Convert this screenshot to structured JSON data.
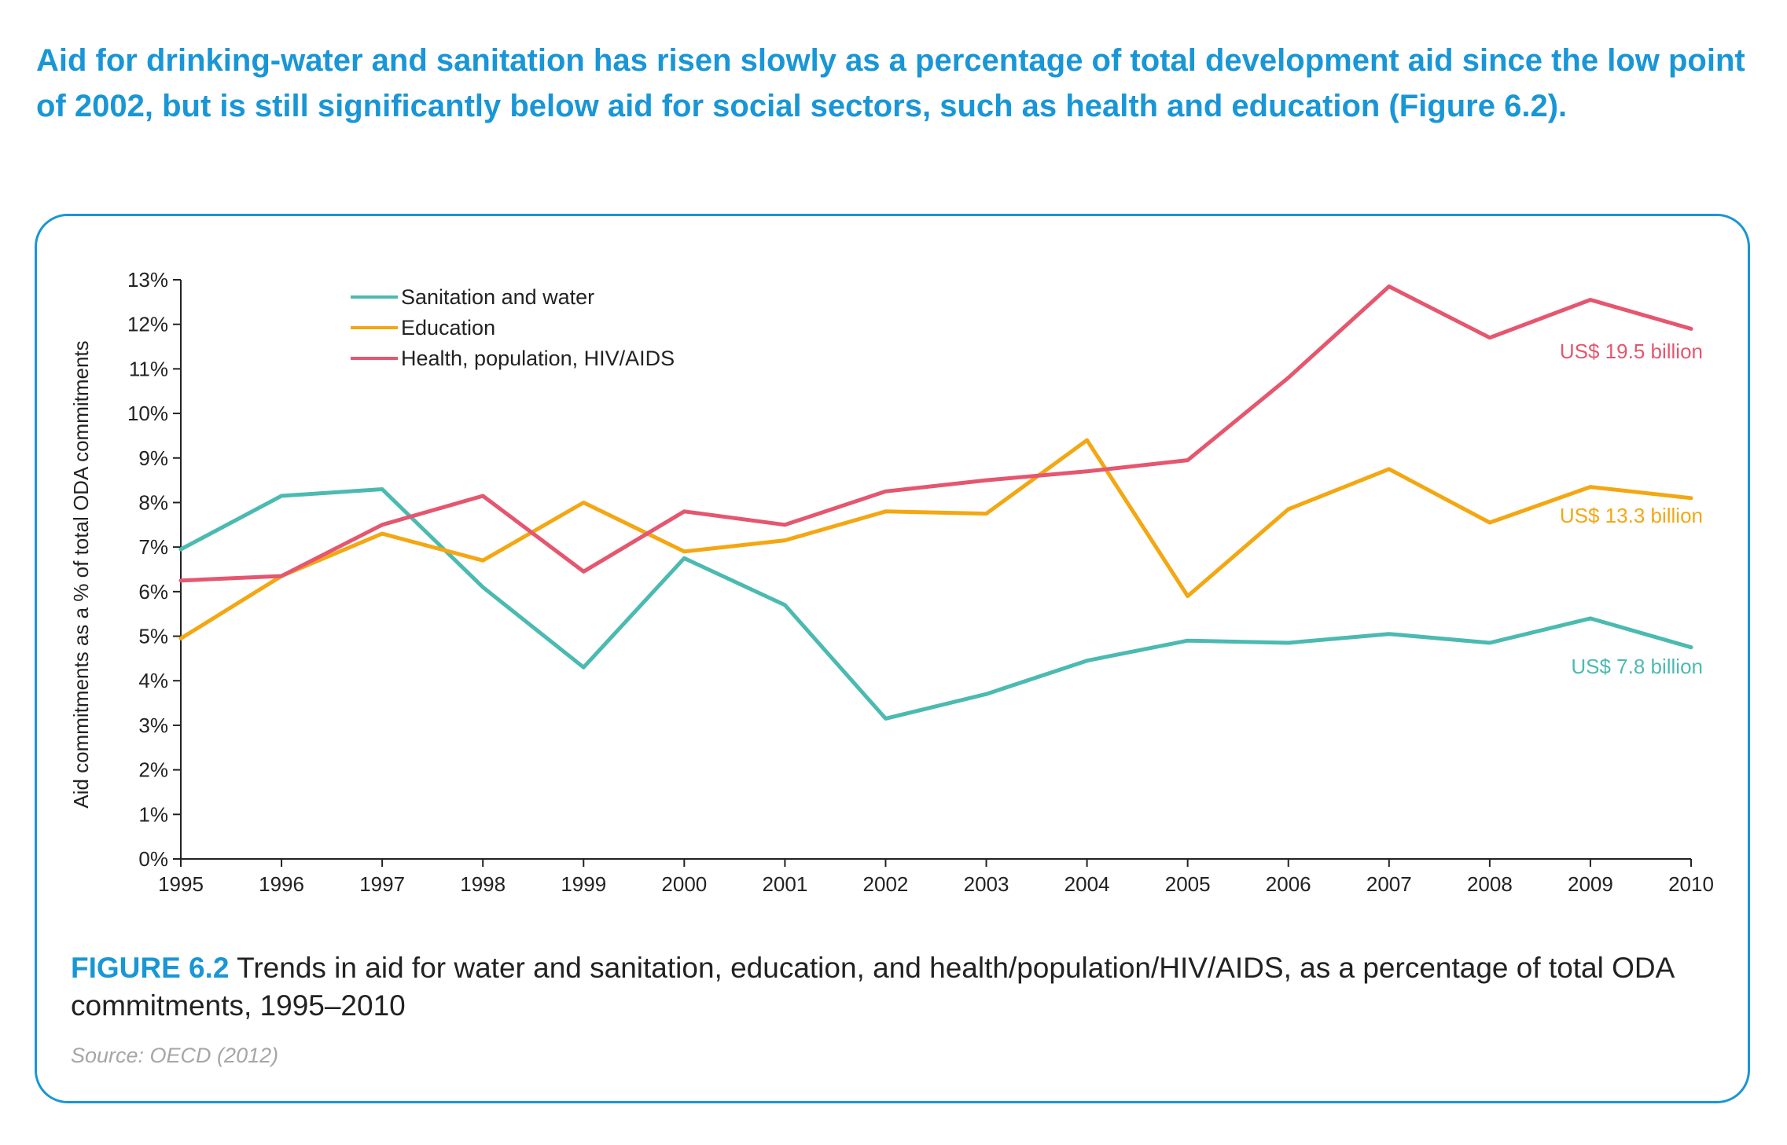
{
  "headline": "Aid for drinking-water and sanitation has risen slowly as a percentage of total development aid since the low point of 2002, but is still significantly below aid for social sectors, such as health and education (Figure 6.2).",
  "figure": {
    "label": "FIGURE 6.2",
    "caption": "Trends in aid for water and sanitation, education, and health/population/HIV/AIDS, as a percentage of total ODA commitments, 1995–2010",
    "source": "Source: OECD (2012)"
  },
  "colors": {
    "accent": "#1996d6",
    "sanitation": "#4bbab1",
    "education": "#f3a712",
    "health": "#e5566f",
    "axis": "#222222",
    "source_text": "#a6a6a6"
  },
  "chart_data": {
    "type": "line",
    "title": "",
    "xlabel": "",
    "ylabel": "Aid commitments as a % of total ODA commitments",
    "x": [
      1995,
      1996,
      1997,
      1998,
      1999,
      2000,
      2001,
      2002,
      2003,
      2004,
      2005,
      2006,
      2007,
      2008,
      2009,
      2010
    ],
    "xtick_labels": [
      "1995",
      "1996",
      "1997",
      "1998",
      "1999",
      "2000",
      "2001",
      "2002",
      "2003",
      "2004",
      "2005",
      "2006",
      "2007",
      "2008",
      "2009",
      "2010"
    ],
    "ylim": [
      0,
      13
    ],
    "ytick_labels": [
      "0%",
      "1%",
      "2%",
      "3%",
      "4%",
      "5%",
      "6%",
      "7%",
      "8%",
      "9%",
      "10%",
      "11%",
      "12%",
      "13%"
    ],
    "grid": false,
    "legend_position": "top-left",
    "series": [
      {
        "name": "Sanitation and water",
        "color": "#4bbab1",
        "values": [
          6.95,
          8.15,
          8.3,
          6.1,
          4.3,
          6.75,
          5.7,
          3.15,
          3.7,
          4.45,
          4.9,
          4.85,
          5.05,
          4.85,
          5.4,
          4.75
        ],
        "end_label": "US$ 7.8 billion"
      },
      {
        "name": "Education",
        "color": "#f3a712",
        "values": [
          4.95,
          6.35,
          7.3,
          6.7,
          8.0,
          6.9,
          7.15,
          7.8,
          7.75,
          9.4,
          5.9,
          7.85,
          8.75,
          7.55,
          8.35,
          8.1
        ],
        "end_label": "US$ 13.3 billion"
      },
      {
        "name": "Health, population, HIV/AIDS",
        "color": "#e5566f",
        "values": [
          6.25,
          6.35,
          7.5,
          8.15,
          6.45,
          7.8,
          7.5,
          8.25,
          8.5,
          8.7,
          8.95,
          10.8,
          12.85,
          11.7,
          12.55,
          11.9
        ],
        "end_label": "US$ 19.5 billion"
      }
    ]
  }
}
